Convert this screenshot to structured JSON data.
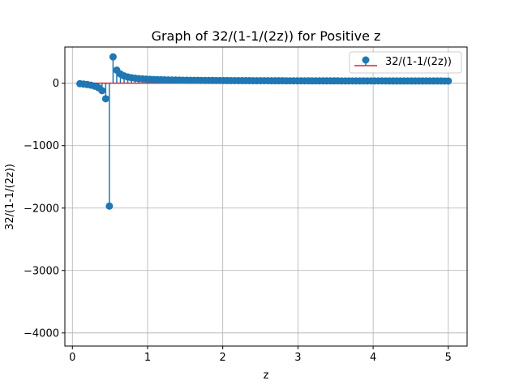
{
  "chart_data": {
    "type": "stem",
    "title": "Graph of 32/(1-1/(2z)) for Positive z",
    "xlabel": "z",
    "ylabel": "32/(1-1/(2z))",
    "xlim": [
      -0.1,
      5.25
    ],
    "ylim": [
      -4210,
      580
    ],
    "xticks": [
      0,
      1,
      2,
      3,
      4,
      5
    ],
    "yticks": [
      -4000,
      -3000,
      -2000,
      -1000,
      0
    ],
    "grid": true,
    "legend_position": "upper right",
    "baseline": 0,
    "series": [
      {
        "name": "32/(1-1/(2z))",
        "color": "#1f77b4",
        "baseline_color": "#d62728",
        "function": "32/(1-1/(2z))",
        "z_start": 0.1,
        "z_end": 5.0,
        "z_step": 0.049,
        "points": 101
      }
    ]
  }
}
